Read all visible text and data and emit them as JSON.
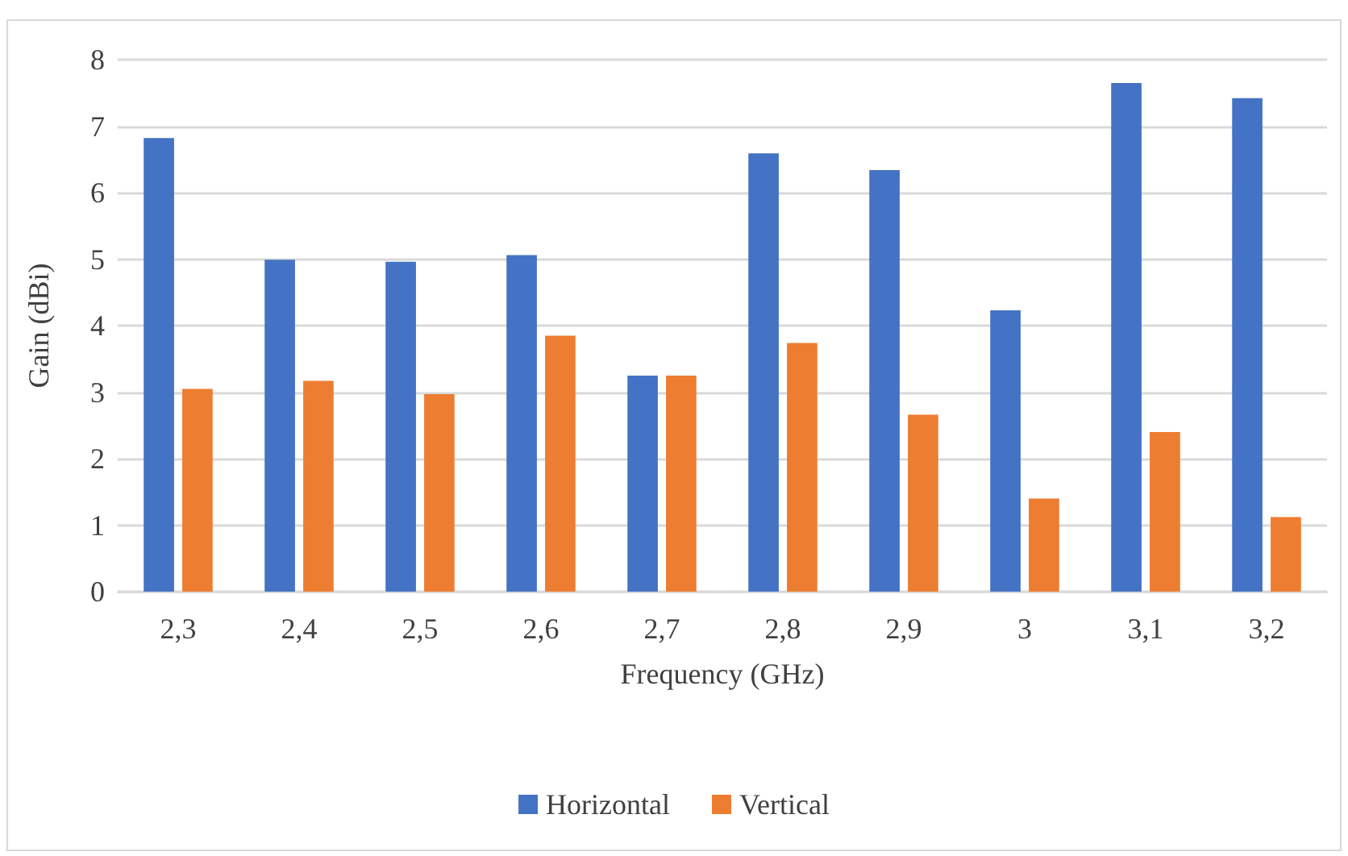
{
  "chart_data": {
    "type": "bar",
    "xlabel": "Frequency (GHz)",
    "ylabel": "Gain (dBi)",
    "categories": [
      "2,3",
      "2,4",
      "2,5",
      "2,6",
      "2,7",
      "2,8",
      "2,9",
      "3",
      "3,1",
      "3,2"
    ],
    "series": [
      {
        "name": "Horizontal",
        "color": "#4472c4",
        "values": [
          6.82,
          4.99,
          4.96,
          5.06,
          3.25,
          6.59,
          6.34,
          4.23,
          7.65,
          7.42
        ]
      },
      {
        "name": "Vertical",
        "color": "#ed7d31",
        "values": [
          3.05,
          3.17,
          2.97,
          3.85,
          3.25,
          3.74,
          2.66,
          1.4,
          2.4,
          1.12
        ]
      }
    ],
    "ylim": [
      0,
      8
    ],
    "yticks": [
      0,
      1,
      2,
      3,
      4,
      5,
      6,
      7,
      8
    ],
    "grid": "y",
    "legend": "bottom"
  }
}
